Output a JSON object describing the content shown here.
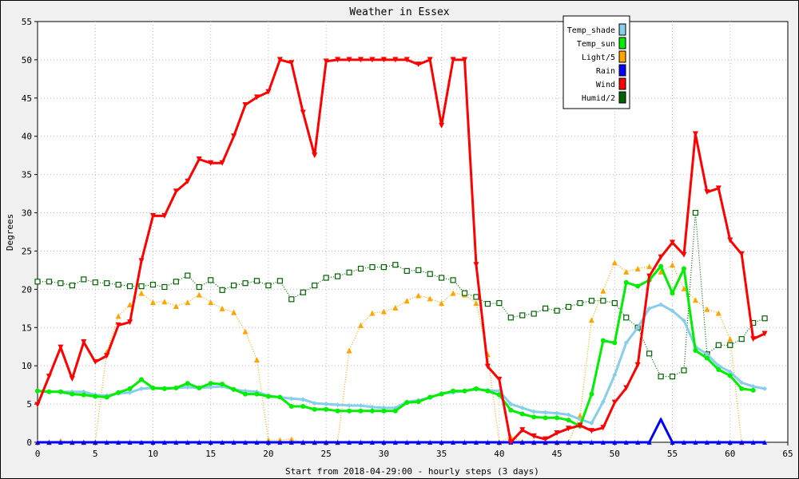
{
  "chart_data": {
    "type": "line",
    "title": "Weather in Essex",
    "xlabel": "Start from 2018-04-29:00 - hourly steps (3 days)",
    "ylabel": "Degrees",
    "xlim": [
      0,
      65
    ],
    "ylim": [
      0,
      55
    ],
    "xticks": [
      0,
      5,
      10,
      15,
      20,
      25,
      30,
      35,
      40,
      45,
      50,
      55,
      60,
      65
    ],
    "yticks": [
      0,
      5,
      10,
      15,
      20,
      25,
      30,
      35,
      40,
      45,
      50,
      55
    ],
    "grid": "dotted",
    "legend_position": "top-right",
    "series": [
      {
        "name": "Temp_shade",
        "color": "#87ceeb",
        "marker": "diamond",
        "values": [
          6.7,
          6.6,
          6.6,
          6.6,
          6.6,
          6.2,
          6.1,
          6.4,
          6.5,
          7.0,
          7.1,
          7.1,
          7.1,
          7.2,
          7.1,
          7.2,
          7.3,
          6.9,
          6.7,
          6.6,
          6.1,
          5.9,
          5.7,
          5.6,
          5.1,
          5.0,
          4.9,
          4.8,
          4.8,
          4.6,
          4.5,
          4.5,
          5.3,
          5.5,
          5.8,
          6.4,
          6.5,
          6.7,
          6.9,
          6.8,
          6.7,
          5.0,
          4.5,
          4.0,
          3.9,
          3.8,
          3.6,
          3.0,
          2.5,
          5.3,
          8.8,
          13.0,
          15.0,
          17.5,
          18.0,
          17.2,
          15.9,
          12.5,
          11.5,
          10.0,
          9.2,
          7.8,
          7.3,
          7.0
        ]
      },
      {
        "name": "Temp_sun",
        "color": "#00ee00",
        "marker": "circle",
        "values": [
          6.7,
          6.6,
          6.6,
          6.3,
          6.2,
          6.0,
          5.9,
          6.5,
          7.0,
          8.2,
          7.1,
          7.0,
          7.1,
          7.7,
          7.1,
          7.7,
          7.6,
          6.9,
          6.3,
          6.3,
          6.0,
          5.9,
          4.7,
          4.7,
          4.3,
          4.3,
          4.1,
          4.1,
          4.1,
          4.1,
          4.1,
          4.1,
          5.2,
          5.3,
          5.9,
          6.3,
          6.7,
          6.7,
          7.0,
          6.7,
          6.2,
          4.2,
          3.7,
          3.3,
          3.2,
          3.2,
          2.9,
          2.1,
          6.3,
          13.3,
          13.0,
          20.9,
          20.4,
          21.2,
          23.0,
          19.5,
          22.7,
          12.0,
          11.0,
          9.5,
          8.7,
          7.0,
          6.8
        ]
      },
      {
        "name": "Light/5",
        "color": "#ffa500",
        "marker": "triangle",
        "values": [
          0,
          0,
          0.2,
          0,
          0,
          0,
          11.8,
          16.5,
          18.0,
          19.5,
          18.3,
          18.4,
          17.8,
          18.3,
          19.3,
          18.3,
          17.5,
          17.0,
          14.5,
          10.8,
          0.3,
          0.3,
          0.4,
          0,
          0,
          0,
          0,
          12.0,
          15.3,
          16.9,
          17.1,
          17.6,
          18.5,
          19.2,
          18.8,
          18.2,
          19.5,
          19.3,
          18.2,
          11.5,
          0,
          0.7,
          0.1,
          0,
          0,
          0,
          0,
          3.5,
          16.0,
          19.8,
          23.5,
          22.3,
          22.7,
          23.0,
          22.3,
          23.2,
          20.1,
          18.6,
          17.4,
          16.9,
          13.5,
          0
        ]
      },
      {
        "name": "Rain",
        "color": "#0000ff",
        "marker": "triangle",
        "values": [
          0,
          0,
          0,
          0,
          0,
          0,
          0,
          0,
          0,
          0,
          0,
          0,
          0,
          0,
          0,
          0,
          0,
          0,
          0,
          0,
          0,
          0,
          0,
          0,
          0,
          0,
          0,
          0,
          0,
          0,
          0,
          0,
          0,
          0,
          0,
          0,
          0,
          0,
          0,
          0,
          0,
          0,
          0,
          0,
          0,
          0,
          0,
          0,
          0,
          0,
          0,
          0,
          0,
          0,
          3.0,
          0,
          0,
          0,
          0,
          0,
          0,
          0,
          0,
          0
        ]
      },
      {
        "name": "Wind",
        "color": "#ff0000",
        "marker": "triangle-down",
        "values": [
          4.9,
          8.6,
          12.4,
          8.3,
          13.1,
          10.5,
          11.3,
          15.3,
          15.7,
          23.7,
          29.6,
          29.6,
          32.8,
          34.1,
          37.0,
          36.5,
          36.5,
          40.0,
          44.1,
          45.1,
          45.8,
          50.0,
          49.6,
          43.1,
          37.5,
          49.8,
          50.0,
          50.0,
          50.0,
          50.0,
          50.0,
          50.0,
          50.0,
          49.4,
          50.0,
          41.4,
          50.0,
          50.0,
          23.2,
          9.9,
          8.2,
          0,
          1.6,
          0.8,
          0.4,
          1.2,
          1.8,
          2.2,
          1.5,
          1.9,
          5.2,
          7.1,
          10.1,
          21.7,
          24.2,
          26.1,
          24.5,
          40.3,
          32.7,
          33.2,
          26.4,
          24.6,
          13.5,
          14.2
        ]
      },
      {
        "name": "Humid/2",
        "color": "#006400",
        "marker": "square",
        "values": [
          21.0,
          21.0,
          20.8,
          20.5,
          21.3,
          20.9,
          20.8,
          20.6,
          20.4,
          20.4,
          20.6,
          20.3,
          21.0,
          21.8,
          20.3,
          21.2,
          19.9,
          20.5,
          20.8,
          21.1,
          20.5,
          21.1,
          18.7,
          19.6,
          20.5,
          21.5,
          21.7,
          22.2,
          22.7,
          22.9,
          22.9,
          23.2,
          22.4,
          22.5,
          22.0,
          21.5,
          21.2,
          19.5,
          19.0,
          18.1,
          18.2,
          16.3,
          16.6,
          16.8,
          17.5,
          17.2,
          17.7,
          18.2,
          18.5,
          18.5,
          18.2,
          16.3,
          15.0,
          11.6,
          8.6,
          8.6,
          9.4,
          30.0,
          11.5,
          12.7,
          12.7,
          13.5,
          15.6,
          16.2
        ]
      }
    ]
  }
}
